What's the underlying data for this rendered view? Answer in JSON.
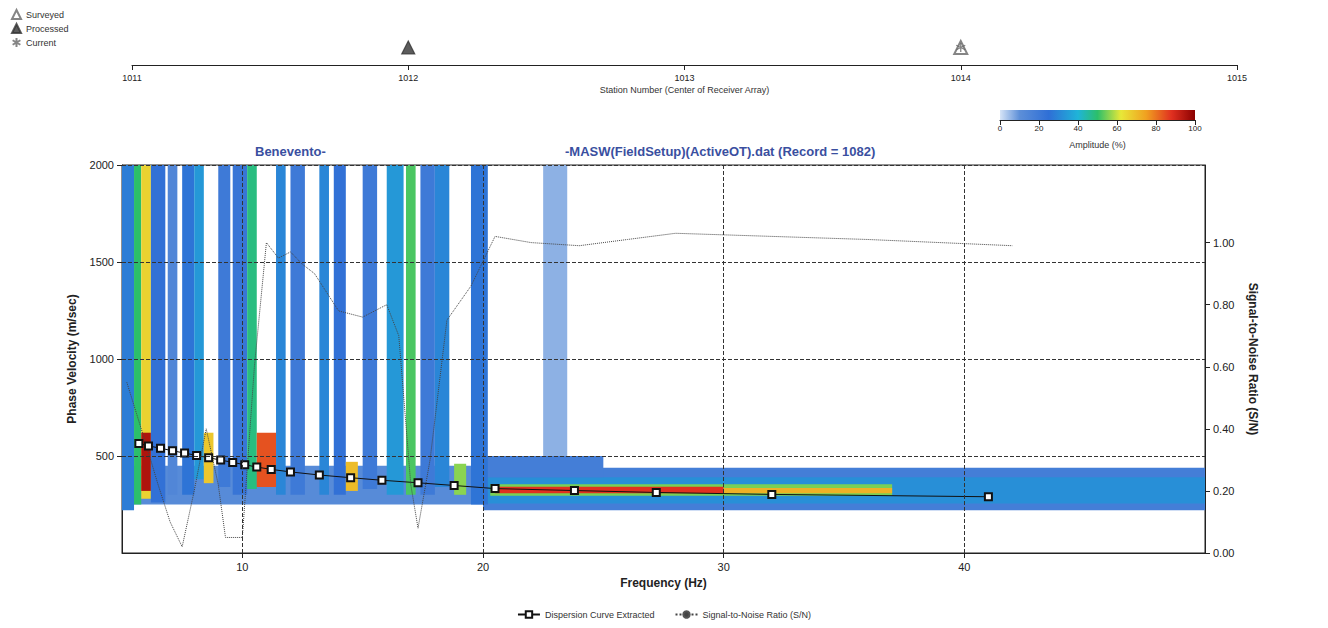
{
  "chart_data": [
    {
      "type": "scatter",
      "xlabel": "Station Number (Center of Receiver Array)",
      "xlim": [
        1011,
        1015
      ],
      "xticks": [
        1011,
        1012,
        1013,
        1014,
        1015
      ],
      "legend": "top left",
      "tick_labels": "x",
      "series": [
        {
          "name": "Surveyed",
          "marker": "triangle-open",
          "color": "#666666",
          "x": [
            1014
          ]
        },
        {
          "name": "Processed",
          "marker": "triangle",
          "color": "#333333",
          "x": [
            1012
          ]
        },
        {
          "name": "Current",
          "marker": "asterisk",
          "color": "#666666",
          "x": [
            1014
          ]
        }
      ]
    },
    {
      "type": "line",
      "title": "Benevento-",
      "subtitle": "-MASW(FieldSetup)(ActiveOT).dat (Record = 1082)",
      "xlabel": "Frequency (Hz)",
      "ylabel": "Phase Velocity (m/sec)",
      "y2label": "Signal-to-Noise Ratio (S/N)",
      "xlim": [
        5,
        50
      ],
      "xticks": [
        10,
        20,
        30,
        40
      ],
      "ylim": [
        0,
        2000
      ],
      "yticks": [
        500,
        1000,
        1500,
        2000
      ],
      "y2lim": [
        0,
        1.25
      ],
      "y2ticks": [
        {
          "value": 0,
          "label": "0.00"
        },
        {
          "value": 0.2,
          "label": "0.20"
        },
        {
          "value": 0.4,
          "label": "0.40"
        },
        {
          "value": 0.6,
          "label": "0.60"
        },
        {
          "value": 0.8,
          "label": "0.80"
        },
        {
          "value": 1.0,
          "label": "1.00"
        }
      ],
      "grid": true,
      "legend": "bottom",
      "series": [
        {
          "name": "Dispersion Curve Extracted",
          "type": "line",
          "marker": "square",
          "line_style": "solid",
          "color": "#111111",
          "x": [
            5.7,
            6.1,
            6.6,
            7.1,
            7.6,
            8.1,
            8.6,
            9.1,
            9.6,
            10.1,
            10.6,
            11.2,
            12.0,
            13.2,
            14.5,
            15.8,
            17.3,
            18.8,
            20.5,
            23.8,
            27.2,
            32.0,
            41.0
          ],
          "values": [
            565,
            552,
            540,
            527,
            515,
            503,
            491,
            479,
            467,
            455,
            443,
            431,
            418,
            402,
            388,
            375,
            362,
            348,
            332,
            322,
            312,
            302,
            290
          ]
        },
        {
          "name": "Signal-to-Noise Ratio (S/N)",
          "type": "line",
          "line_style": "dotted",
          "color": "#444444",
          "axis": "y2",
          "x": [
            5.2,
            5.6,
            6.0,
            6.5,
            7.0,
            7.5,
            8.0,
            8.5,
            9.0,
            9.3,
            10.0,
            10.5,
            11.0,
            11.5,
            12.0,
            12.5,
            13.0,
            14.0,
            15.0,
            16.0,
            16.5,
            17.0,
            17.3,
            17.8,
            18.5,
            19.5,
            20.5,
            22.0,
            24.0,
            26.0,
            28.0,
            32.0,
            36.0,
            42.0
          ],
          "values": [
            0.55,
            0.45,
            0.35,
            0.22,
            0.1,
            0.02,
            0.2,
            0.4,
            0.22,
            0.05,
            0.05,
            0.6,
            1.0,
            0.95,
            0.97,
            0.93,
            0.9,
            0.78,
            0.76,
            0.8,
            0.7,
            0.22,
            0.08,
            0.3,
            0.75,
            0.86,
            1.02,
            1.0,
            0.99,
            1.01,
            1.03,
            1.02,
            1.01,
            0.99
          ]
        }
      ],
      "colorbar": {
        "label": "Amplitude (%)",
        "range": [
          0,
          100
        ],
        "ticks": [
          0,
          20,
          40,
          60,
          80,
          100
        ]
      },
      "cells": [
        [
          5,
          20,
          250,
          450,
          12
        ],
        [
          20,
          50,
          220,
          440,
          18
        ],
        [
          20,
          50,
          255,
          390,
          32
        ],
        [
          20,
          25,
          390,
          500,
          18
        ],
        [
          22.5,
          23.5,
          500,
          2000,
          6
        ],
        [
          20.3,
          37,
          295,
          355,
          55
        ],
        [
          20.5,
          30,
          308,
          342,
          88
        ],
        [
          30,
          37,
          308,
          335,
          72
        ],
        [
          5,
          5.5,
          220,
          2000,
          28
        ],
        [
          5.5,
          5.8,
          250,
          2000,
          50
        ],
        [
          5.8,
          6.2,
          280,
          2000,
          66
        ],
        [
          5.8,
          6.2,
          320,
          620,
          95
        ],
        [
          6.2,
          6.8,
          260,
          2000,
          24
        ],
        [
          6.9,
          7.3,
          300,
          2000,
          14
        ],
        [
          7.5,
          8.0,
          300,
          2000,
          26
        ],
        [
          8.0,
          8.4,
          380,
          2000,
          34
        ],
        [
          8.4,
          8.8,
          360,
          620,
          68
        ],
        [
          9.0,
          9.5,
          340,
          2000,
          20
        ],
        [
          9.6,
          10.2,
          300,
          2000,
          22
        ],
        [
          10.2,
          10.6,
          330,
          2000,
          48
        ],
        [
          10.6,
          11.4,
          340,
          620,
          84
        ],
        [
          11.4,
          11.8,
          300,
          2000,
          30
        ],
        [
          12.0,
          12.6,
          300,
          2000,
          20
        ],
        [
          13.2,
          13.6,
          300,
          2000,
          30
        ],
        [
          13.8,
          14.3,
          300,
          2000,
          24
        ],
        [
          14.3,
          14.8,
          320,
          470,
          70
        ],
        [
          15.0,
          15.6,
          330,
          2000,
          20
        ],
        [
          16.0,
          16.7,
          300,
          2000,
          34
        ],
        [
          16.8,
          17.2,
          300,
          2000,
          52
        ],
        [
          17.4,
          18.0,
          300,
          2000,
          20
        ],
        [
          18.0,
          18.6,
          340,
          2000,
          30
        ],
        [
          18.8,
          19.3,
          300,
          460,
          56
        ],
        [
          19.5,
          20.2,
          250,
          2000,
          26
        ]
      ]
    }
  ]
}
